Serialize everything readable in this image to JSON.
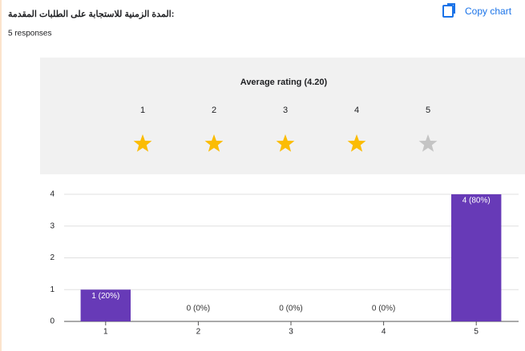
{
  "header": {
    "title": "المدة الزمنية للاستجابة على الطلبات المقدمة:",
    "responses": "5 responses",
    "copy": "Copy chart"
  },
  "rating": {
    "title": "Average rating (4.20)",
    "value": 4.2,
    "labels": [
      1,
      2,
      3,
      4,
      5
    ],
    "filled_color": "#fbbc04",
    "empty_color": "#c4c4c4"
  },
  "chart_data": {
    "type": "bar",
    "categories": [
      "1",
      "2",
      "3",
      "4",
      "5"
    ],
    "values": [
      1,
      0,
      0,
      0,
      4
    ],
    "value_labels": [
      "1 (20%)",
      "0 (0%)",
      "0 (0%)",
      "0 (0%)",
      "4 (80%)"
    ],
    "color": "#673ab7",
    "ylim": [
      0,
      4
    ],
    "yticks": [
      0,
      1,
      2,
      3,
      4
    ],
    "grid": true
  }
}
